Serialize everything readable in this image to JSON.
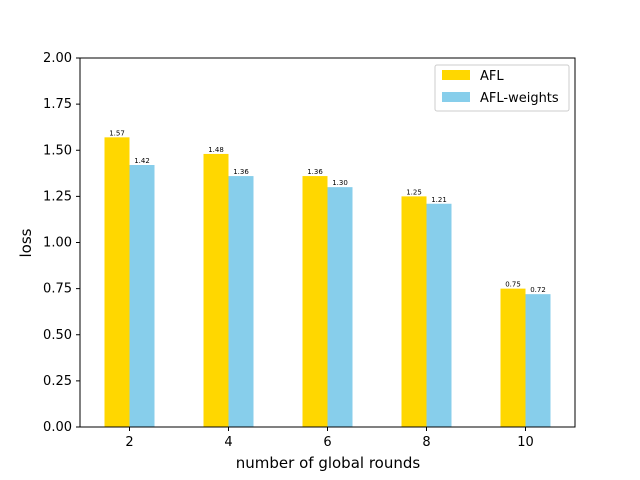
{
  "chart_data": {
    "type": "bar",
    "title": "",
    "xlabel": "number of global rounds",
    "ylabel": "loss",
    "categories": [
      "2",
      "4",
      "6",
      "8",
      "10"
    ],
    "series": [
      {
        "name": "AFL",
        "values": [
          1.57,
          1.48,
          1.36,
          1.25,
          0.75
        ],
        "labels": [
          "1.57",
          "1.48",
          "1.36",
          "1.25",
          "0.75"
        ],
        "color": "#FFD700"
      },
      {
        "name": "AFL-weights",
        "values": [
          1.42,
          1.36,
          1.3,
          1.21,
          0.72
        ],
        "labels": [
          "1.42",
          "1.36",
          "1.30",
          "1.21",
          "0.72"
        ],
        "color": "#87CEEB"
      }
    ],
    "ylim": [
      0,
      2.0
    ],
    "yticks": [
      "0.00",
      "0.25",
      "0.50",
      "0.75",
      "1.00",
      "1.25",
      "1.50",
      "1.75",
      "2.00"
    ],
    "grid": false,
    "legend": "top-right"
  }
}
